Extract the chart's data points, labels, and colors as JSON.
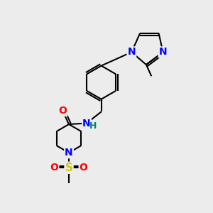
{
  "bg_color": "#ececec",
  "bond_color": "#000000",
  "bond_width": 1.5,
  "atom_colors": {
    "N": "#0000ff",
    "O": "#ff0000",
    "S": "#cccc00",
    "H": "#008080",
    "C": "#000000"
  },
  "font_size_atom": 10,
  "font_size_small": 8,
  "figsize": [
    3.0,
    3.0
  ],
  "dpi": 100
}
